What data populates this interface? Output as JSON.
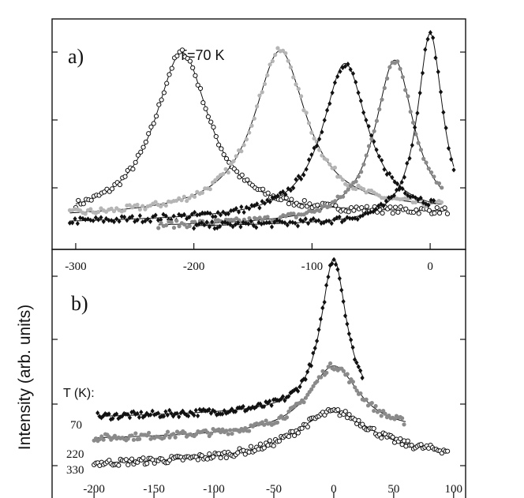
{
  "chart_data": {
    "type": "scatter",
    "ylabel": "Intensity (arb. units)",
    "panels": [
      {
        "label": "a)",
        "annotation": "T=70 K",
        "xlim": [
          -320,
          30
        ],
        "ylim": [
          0,
          1.06
        ],
        "xticks": [
          -300,
          -200,
          -100,
          0
        ],
        "xtick_labels": [
          "-300",
          "-200",
          "-100",
          "0"
        ],
        "series": [
          {
            "name": "peak at -210",
            "color": "#111111",
            "marker": "open-circle",
            "center": -210,
            "width": 28,
            "amplitude": 0.83,
            "baseline": 0.1,
            "slope": 0.00035,
            "xrange": [
              -300,
              15
            ]
          },
          {
            "name": "peak at -127",
            "color": "#b5b5b5",
            "marker": "filled-circle",
            "center": -127,
            "width": 27,
            "amplitude": 0.82,
            "baseline": 0.11,
            "slope": 0.0004,
            "xrange": [
              -305,
              10
            ]
          },
          {
            "name": "peak at -72",
            "color": "#111111",
            "marker": "filled-diamond",
            "center": -72,
            "width": 23,
            "amplitude": 0.78,
            "baseline": 0.08,
            "slope": 0.0004,
            "xrange": [
              -305,
              5
            ]
          },
          {
            "name": "peak at -30",
            "color": "#8a8a8a",
            "marker": "filled-circle",
            "center": -30,
            "width": 20,
            "amplitude": 0.82,
            "baseline": 0.06,
            "slope": 0.0004,
            "xrange": [
              -230,
              10
            ]
          },
          {
            "name": "peak at 0",
            "color": "#111111",
            "marker": "filled-diamond",
            "center": 0,
            "width": 13,
            "amplitude": 0.96,
            "baseline": 0.06,
            "slope": 0.0003,
            "xrange": [
              -200,
              20
            ]
          }
        ]
      },
      {
        "label": "b)",
        "legend_title": "T (K):",
        "xlim": [
          -235,
          110
        ],
        "ylim": [
          0,
          1.12
        ],
        "xticks": [
          -200,
          -150,
          -100,
          -50,
          0,
          50,
          100
        ],
        "xtick_labels": [
          "-200",
          "-150",
          "-100",
          "-50",
          "0",
          "50",
          "100"
        ],
        "series": [
          {
            "name": "70",
            "color": "#111111",
            "marker": "filled-diamond",
            "center": 0,
            "width": 13,
            "amplitude": 0.76,
            "baseline": 0.33,
            "slope": 0.0006,
            "xrange": [
              -197,
              25
            ]
          },
          {
            "name": "220",
            "color": "#8a8a8a",
            "marker": "filled-circle",
            "center": 0,
            "width": 26,
            "amplitude": 0.34,
            "baseline": 0.22,
            "slope": 0.0005,
            "xrange": [
              -200,
              60
            ]
          },
          {
            "name": "330",
            "color": "#111111",
            "marker": "open-circle",
            "center": 0,
            "width": 40,
            "amplitude": 0.24,
            "baseline": 0.09,
            "slope": 0.0005,
            "xrange": [
              -200,
              95
            ]
          }
        ]
      }
    ]
  }
}
